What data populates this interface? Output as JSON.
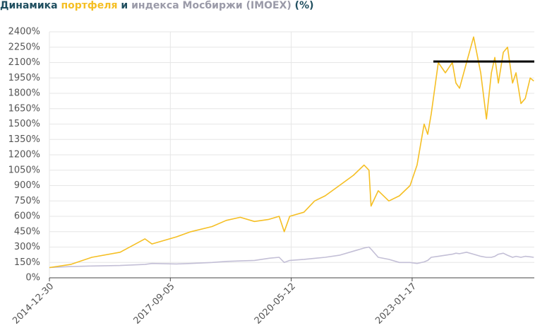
{
  "chart_data": {
    "type": "line",
    "title_prefix": "Динамика",
    "title_middle": "и",
    "title_suffix": "(%)",
    "x": [
      "2014-12-30",
      "2015-06-20",
      "2015-12-09",
      "2016-07-25",
      "2017-02-11",
      "2017-04-09",
      "2017-10-26",
      "2018-02-18",
      "2018-08-09",
      "2018-12-02",
      "2019-03-26",
      "2019-07-19",
      "2019-11-11",
      "2020-02-04",
      "2020-03-16",
      "2020-04-30",
      "2020-08-23",
      "2020-11-17",
      "2021-02-11",
      "2021-06-06",
      "2021-09-28",
      "2021-12-23",
      "2022-02-01",
      "2022-02-18",
      "2022-04-17",
      "2022-07-12",
      "2022-10-06",
      "2022-12-31",
      "2023-02-26",
      "2023-04-24",
      "2023-05-23",
      "2023-06-21",
      "2023-08-17",
      "2023-10-13",
      "2023-12-09",
      "2024-01-07",
      "2024-02-05",
      "2024-04-02",
      "2024-05-29",
      "2024-07-26",
      "2024-09-10",
      "2024-10-20",
      "2024-11-17",
      "2024-12-16",
      "2025-01-25",
      "2025-02-28",
      "2025-04-10",
      "2025-05-08",
      "2025-06-17",
      "2025-07-22",
      "2025-08-31",
      "2025-09-29"
    ],
    "series": [
      {
        "name": "портфеля",
        "color": "#f5bf24",
        "values": [
          100,
          130,
          200,
          250,
          380,
          330,
          400,
          450,
          500,
          560,
          590,
          550,
          570,
          600,
          450,
          600,
          640,
          750,
          800,
          900,
          1000,
          1100,
          1050,
          700,
          850,
          750,
          800,
          900,
          1100,
          1500,
          1400,
          1600,
          2100,
          2000,
          2100,
          1900,
          1850,
          2100,
          2350,
          2000,
          1550,
          2000,
          2150,
          1900,
          2200,
          2250,
          1900,
          2000,
          1700,
          1750,
          1950,
          1920
        ]
      },
      {
        "name": "индекса Мосбиржи (IMOEX)",
        "color": "#c3bfd6",
        "values": [
          100,
          110,
          115,
          120,
          130,
          140,
          135,
          140,
          150,
          160,
          165,
          170,
          190,
          200,
          150,
          170,
          180,
          190,
          200,
          220,
          260,
          290,
          300,
          280,
          200,
          180,
          150,
          150,
          140,
          155,
          170,
          200,
          210,
          220,
          230,
          240,
          235,
          250,
          230,
          210,
          200,
          200,
          210,
          230,
          240,
          220,
          200,
          210,
          200,
          210,
          205,
          200
        ]
      }
    ],
    "xlim": [
      "2014-12-30",
      "2025-10-03"
    ],
    "xticks": [
      "2014-12-30",
      "2017-09-05",
      "2020-05-12",
      "2023-01-17"
    ],
    "ylim": [
      0,
      2400
    ],
    "yticks": [
      {
        "value": 0,
        "label": "0%"
      },
      {
        "value": 150,
        "label": "150%"
      },
      {
        "value": 300,
        "label": "300%"
      },
      {
        "value": 450,
        "label": "450%"
      },
      {
        "value": 600,
        "label": "600%"
      },
      {
        "value": 750,
        "label": "750%"
      },
      {
        "value": 900,
        "label": "900%"
      },
      {
        "value": 1050,
        "label": "1050%"
      },
      {
        "value": 1200,
        "label": "1200%"
      },
      {
        "value": 1350,
        "label": "1350%"
      },
      {
        "value": 1500,
        "label": "1500%"
      },
      {
        "value": 1650,
        "label": "1650%"
      },
      {
        "value": 1800,
        "label": "1800%"
      },
      {
        "value": 1950,
        "label": "1950%"
      },
      {
        "value": 2100,
        "label": "2100%"
      },
      {
        "value": 2250,
        "label": "2250%"
      },
      {
        "value": 2400,
        "label": "2400%"
      }
    ],
    "grid": true,
    "hline": 2110,
    "hline_start": "2023-07-08"
  }
}
